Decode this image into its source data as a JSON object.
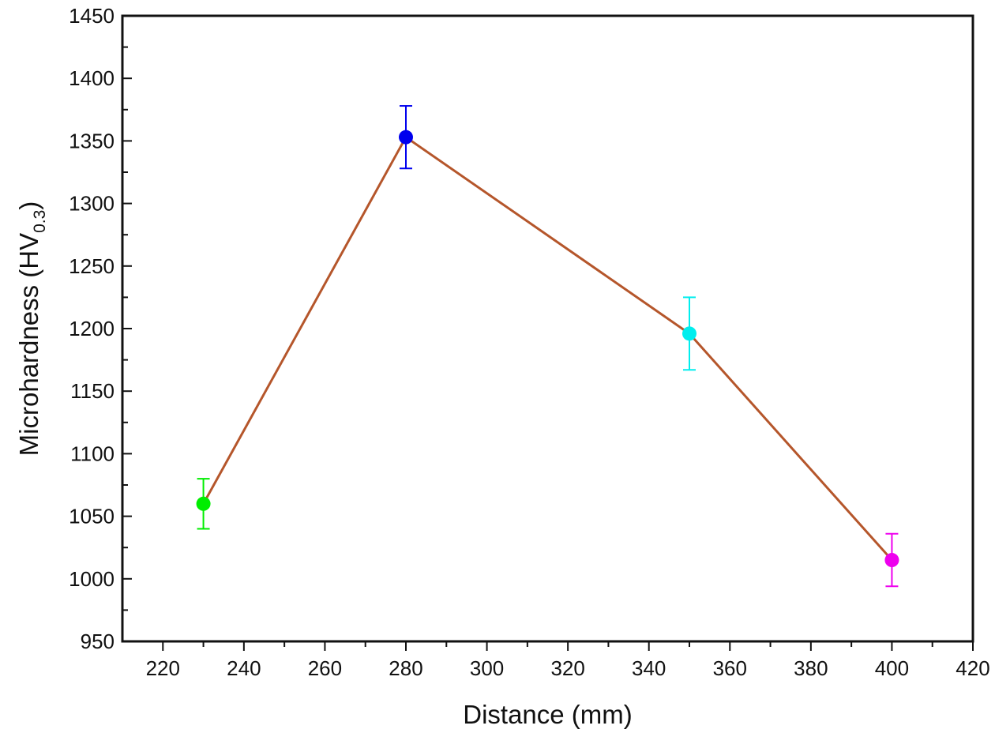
{
  "chart_data": {
    "type": "scatter",
    "title": "",
    "xlabel": "Distance (mm)",
    "ylabel": {
      "main": "Microhardness (HV",
      "subscript": "0.3",
      "close": ")"
    },
    "xlim": [
      210,
      420
    ],
    "ylim": [
      950,
      1450
    ],
    "x_major_ticks": [
      220,
      240,
      260,
      280,
      300,
      320,
      340,
      360,
      380,
      400,
      420
    ],
    "x_minor_ticks": [
      230,
      250,
      270,
      290,
      310,
      330,
      350,
      370,
      390,
      410
    ],
    "y_major_ticks": [
      950,
      1000,
      1050,
      1100,
      1150,
      1200,
      1250,
      1300,
      1350,
      1400,
      1450
    ],
    "y_minor_ticks": [
      975,
      1025,
      1075,
      1125,
      1175,
      1225,
      1275,
      1325,
      1375,
      1425
    ],
    "line_color": "#b5562b",
    "points": [
      {
        "x": 230,
        "y": 1060,
        "err": 20,
        "color": "#00ee00"
      },
      {
        "x": 280,
        "y": 1353,
        "err": 25,
        "color": "#0000ee"
      },
      {
        "x": 350,
        "y": 1196,
        "err": 29,
        "color": "#00eeee"
      },
      {
        "x": 400,
        "y": 1015,
        "err": 21,
        "color": "#ee00ee"
      }
    ],
    "grid": false,
    "legend": "none"
  }
}
